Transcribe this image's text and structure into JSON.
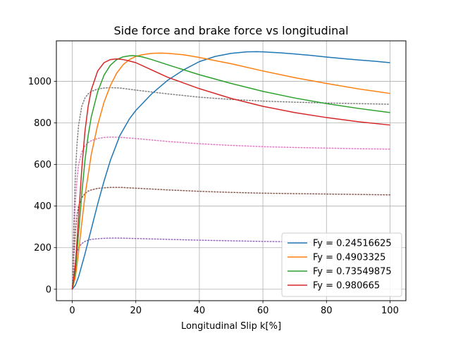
{
  "chart_data": {
    "type": "line",
    "title": "Side force and brake force vs longitudinal",
    "xlabel": "Longitudinal Slip k[%]",
    "ylabel": "",
    "xlim": [
      -5,
      105
    ],
    "ylim": [
      -55,
      1195
    ],
    "xticks": [
      0,
      20,
      40,
      60,
      80,
      100
    ],
    "yticks": [
      0,
      200,
      400,
      600,
      800,
      1000
    ],
    "grid": true,
    "legend_position": "lower-right",
    "series": [
      {
        "name": "Fy = 0.24516625",
        "color": "#1f77b4",
        "style": "solid",
        "in_legend": true,
        "x": [
          0,
          1,
          2,
          4,
          6,
          8,
          10,
          12,
          15,
          18,
          20,
          25,
          30,
          35,
          40,
          45,
          50,
          55,
          58,
          60,
          65,
          70,
          75,
          80,
          85,
          90,
          95,
          100
        ],
        "y": [
          0,
          20,
          60,
          170,
          290,
          410,
          520,
          620,
          740,
          820,
          860,
          940,
          1005,
          1055,
          1095,
          1120,
          1135,
          1142,
          1143,
          1142,
          1138,
          1132,
          1125,
          1117,
          1110,
          1103,
          1097,
          1090
        ]
      },
      {
        "name": "Fy = 0.4903325",
        "color": "#ff7f0e",
        "style": "solid",
        "in_legend": true,
        "x": [
          0,
          1,
          2,
          3,
          4,
          6,
          8,
          10,
          12,
          14,
          16,
          18,
          20,
          22,
          25,
          28,
          30,
          35,
          40,
          50,
          60,
          70,
          80,
          90,
          100
        ],
        "y": [
          0,
          60,
          180,
          320,
          450,
          650,
          790,
          900,
          980,
          1040,
          1080,
          1105,
          1120,
          1128,
          1135,
          1136,
          1135,
          1128,
          1115,
          1085,
          1050,
          1018,
          990,
          964,
          942
        ]
      },
      {
        "name": "Fy = 0.73549875",
        "color": "#2ca02c",
        "style": "solid",
        "in_legend": true,
        "x": [
          0,
          1,
          2,
          3,
          4,
          5,
          6,
          8,
          10,
          12,
          14,
          16,
          18,
          19,
          20,
          22,
          25,
          30,
          40,
          50,
          60,
          70,
          80,
          90,
          100
        ],
        "y": [
          0,
          90,
          270,
          460,
          620,
          740,
          830,
          950,
          1030,
          1078,
          1105,
          1118,
          1123,
          1124,
          1123,
          1118,
          1105,
          1080,
          1032,
          990,
          952,
          920,
          893,
          870,
          850
        ]
      },
      {
        "name": "Fy = 0.980665",
        "color": "#d62728",
        "style": "solid",
        "in_legend": true,
        "x": [
          0,
          1,
          2,
          3,
          4,
          5,
          6,
          8,
          10,
          12,
          14,
          16,
          18,
          20,
          25,
          30,
          40,
          50,
          60,
          70,
          80,
          90,
          100
        ],
        "y": [
          0,
          120,
          350,
          580,
          760,
          880,
          960,
          1050,
          1090,
          1105,
          1108,
          1105,
          1098,
          1090,
          1055,
          1020,
          965,
          918,
          880,
          850,
          826,
          806,
          790
        ]
      },
      {
        "name": "",
        "color": "#9467bd",
        "style": "dotted",
        "in_legend": false,
        "x": [
          0,
          0.5,
          1,
          1.5,
          2,
          3,
          4,
          5,
          6,
          8,
          10,
          12,
          15,
          20,
          30,
          40,
          50,
          60,
          70,
          80,
          90,
          100
        ],
        "y": [
          0,
          80,
          140,
          178,
          200,
          220,
          230,
          236,
          240,
          243,
          245,
          246,
          246,
          244,
          240,
          236,
          233,
          230,
          228,
          226,
          224,
          222
        ]
      },
      {
        "name": "",
        "color": "#8c564b",
        "style": "dotted",
        "in_legend": false,
        "x": [
          0,
          0.5,
          1,
          1.5,
          2,
          3,
          4,
          5,
          6,
          8,
          10,
          12,
          15,
          20,
          30,
          40,
          50,
          60,
          70,
          80,
          90,
          100
        ],
        "y": [
          0,
          160,
          280,
          355,
          400,
          440,
          460,
          472,
          478,
          485,
          488,
          490,
          490,
          486,
          478,
          471,
          466,
          462,
          460,
          458,
          456,
          454
        ]
      },
      {
        "name": "",
        "color": "#e377c2",
        "style": "dotted",
        "in_legend": false,
        "x": [
          0,
          0.5,
          1,
          1.5,
          2,
          3,
          4,
          5,
          6,
          8,
          10,
          12,
          15,
          20,
          30,
          40,
          50,
          60,
          70,
          80,
          90,
          100
        ],
        "y": [
          0,
          240,
          420,
          530,
          600,
          660,
          690,
          705,
          715,
          725,
          730,
          732,
          731,
          725,
          711,
          700,
          692,
          686,
          682,
          679,
          676,
          674
        ]
      },
      {
        "name": "",
        "color": "#7f7f7f",
        "style": "dotted",
        "in_legend": false,
        "x": [
          0,
          0.5,
          1,
          1.5,
          2,
          3,
          4,
          5,
          6,
          8,
          10,
          12,
          15,
          20,
          30,
          40,
          50,
          60,
          70,
          80,
          90,
          100
        ],
        "y": [
          0,
          320,
          560,
          700,
          790,
          880,
          920,
          940,
          952,
          963,
          968,
          970,
          968,
          958,
          940,
          924,
          913,
          905,
          900,
          896,
          893,
          890
        ]
      }
    ]
  }
}
